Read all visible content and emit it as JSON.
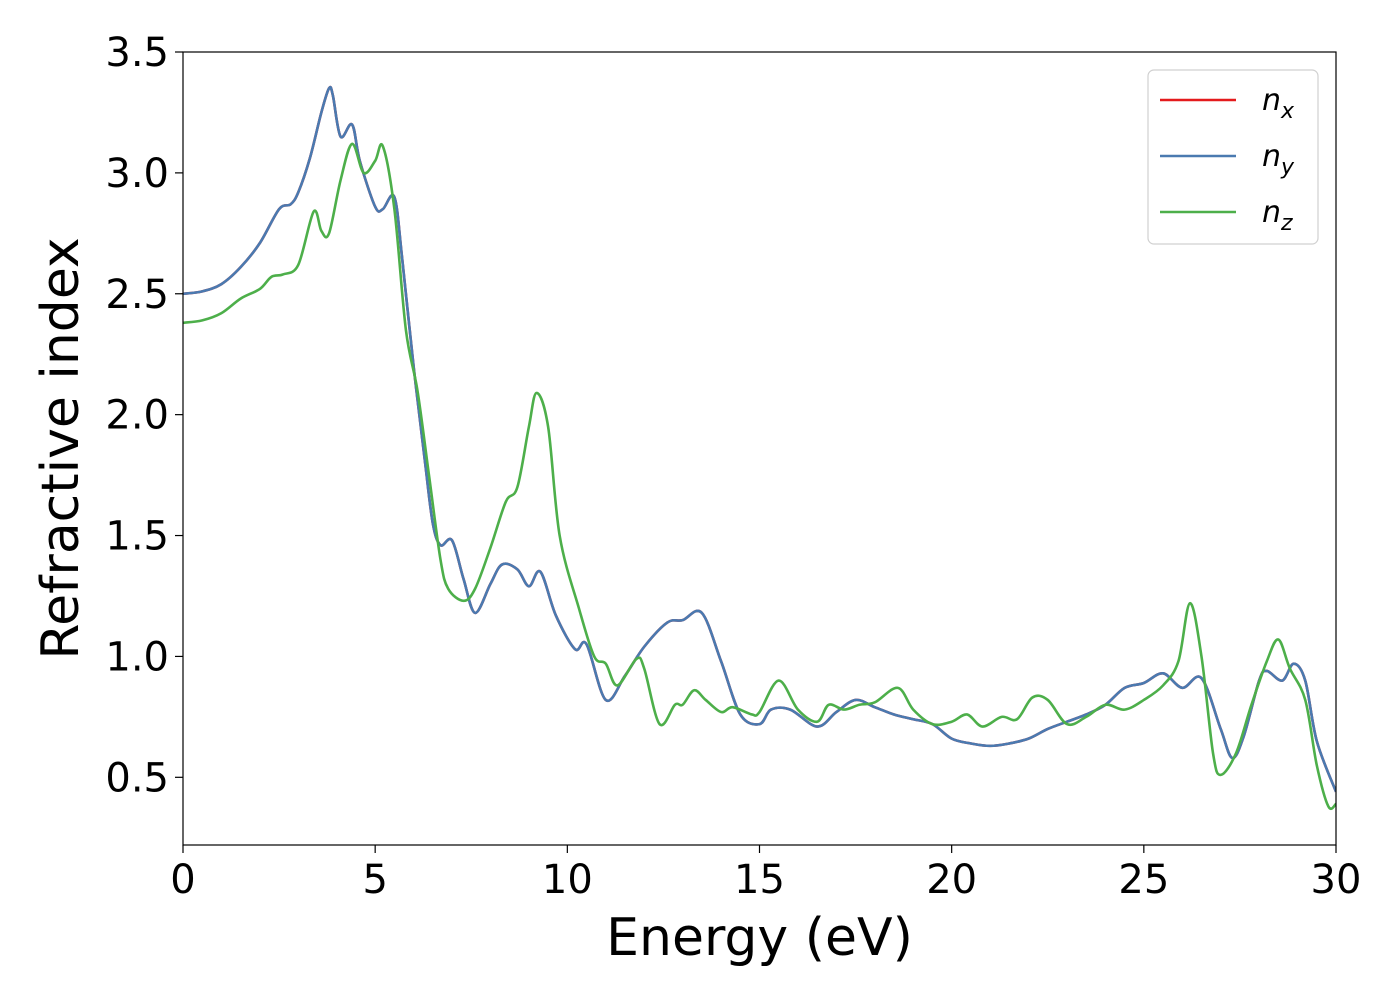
{
  "chart_data": {
    "type": "line",
    "xlabel": "Energy (eV)",
    "ylabel": "Refractive index",
    "xlim": [
      0,
      30
    ],
    "ylim": [
      0.22,
      3.5
    ],
    "xticks": [
      "0",
      "5",
      "10",
      "15",
      "20",
      "25",
      "30"
    ],
    "yticks": [
      "0.5",
      "1.0",
      "1.5",
      "2.0",
      "2.5",
      "3.0",
      "3.5"
    ],
    "grid": false,
    "legend_position": "top-right",
    "series": [
      {
        "name": "n_x",
        "legend_base": "n",
        "legend_sub": "x",
        "color": "#e41a1c",
        "points": [
          [
            0,
            2.5
          ],
          [
            0.5,
            2.51
          ],
          [
            1.0,
            2.54
          ],
          [
            1.5,
            2.61
          ],
          [
            2.0,
            2.71
          ],
          [
            2.5,
            2.85
          ],
          [
            2.8,
            2.87
          ],
          [
            3.0,
            2.92
          ],
          [
            3.3,
            3.06
          ],
          [
            3.6,
            3.25
          ],
          [
            3.8,
            3.35
          ],
          [
            3.9,
            3.32
          ],
          [
            4.1,
            3.15
          ],
          [
            4.4,
            3.2
          ],
          [
            4.6,
            3.05
          ],
          [
            5.0,
            2.86
          ],
          [
            5.2,
            2.85
          ],
          [
            5.5,
            2.9
          ],
          [
            5.7,
            2.65
          ],
          [
            6.0,
            2.2
          ],
          [
            6.3,
            1.8
          ],
          [
            6.5,
            1.55
          ],
          [
            6.7,
            1.46
          ],
          [
            7.0,
            1.48
          ],
          [
            7.3,
            1.32
          ],
          [
            7.6,
            1.18
          ],
          [
            8.0,
            1.3
          ],
          [
            8.3,
            1.38
          ],
          [
            8.7,
            1.36
          ],
          [
            9.0,
            1.29
          ],
          [
            9.3,
            1.35
          ],
          [
            9.7,
            1.17
          ],
          [
            10.2,
            1.03
          ],
          [
            10.5,
            1.05
          ],
          [
            11.0,
            0.82
          ],
          [
            11.5,
            0.92
          ],
          [
            12.0,
            1.04
          ],
          [
            12.6,
            1.14
          ],
          [
            13.0,
            1.15
          ],
          [
            13.5,
            1.18
          ],
          [
            14.0,
            0.98
          ],
          [
            14.5,
            0.76
          ],
          [
            15.0,
            0.72
          ],
          [
            15.3,
            0.78
          ],
          [
            15.8,
            0.78
          ],
          [
            16.5,
            0.71
          ],
          [
            17.0,
            0.77
          ],
          [
            17.5,
            0.82
          ],
          [
            18.0,
            0.79
          ],
          [
            18.5,
            0.76
          ],
          [
            19.0,
            0.74
          ],
          [
            19.5,
            0.72
          ],
          [
            20.0,
            0.66
          ],
          [
            20.5,
            0.64
          ],
          [
            21.0,
            0.63
          ],
          [
            21.5,
            0.64
          ],
          [
            22.0,
            0.66
          ],
          [
            22.5,
            0.7
          ],
          [
            23.0,
            0.73
          ],
          [
            23.5,
            0.76
          ],
          [
            24.0,
            0.8
          ],
          [
            24.5,
            0.87
          ],
          [
            25.0,
            0.89
          ],
          [
            25.5,
            0.93
          ],
          [
            26.0,
            0.87
          ],
          [
            26.5,
            0.91
          ],
          [
            27.0,
            0.7
          ],
          [
            27.3,
            0.58
          ],
          [
            27.6,
            0.67
          ],
          [
            28.0,
            0.9
          ],
          [
            28.2,
            0.94
          ],
          [
            28.6,
            0.9
          ],
          [
            28.9,
            0.97
          ],
          [
            29.2,
            0.9
          ],
          [
            29.5,
            0.65
          ],
          [
            30.0,
            0.44
          ]
        ]
      },
      {
        "name": "n_y",
        "legend_base": "n",
        "legend_sub": "y",
        "color": "#4a7ab0",
        "points": [
          [
            0,
            2.5
          ],
          [
            0.5,
            2.51
          ],
          [
            1.0,
            2.54
          ],
          [
            1.5,
            2.61
          ],
          [
            2.0,
            2.71
          ],
          [
            2.5,
            2.85
          ],
          [
            2.8,
            2.87
          ],
          [
            3.0,
            2.92
          ],
          [
            3.3,
            3.06
          ],
          [
            3.6,
            3.25
          ],
          [
            3.8,
            3.35
          ],
          [
            3.9,
            3.32
          ],
          [
            4.1,
            3.15
          ],
          [
            4.4,
            3.2
          ],
          [
            4.6,
            3.05
          ],
          [
            5.0,
            2.86
          ],
          [
            5.2,
            2.85
          ],
          [
            5.5,
            2.9
          ],
          [
            5.7,
            2.65
          ],
          [
            6.0,
            2.2
          ],
          [
            6.3,
            1.8
          ],
          [
            6.5,
            1.55
          ],
          [
            6.7,
            1.46
          ],
          [
            7.0,
            1.48
          ],
          [
            7.3,
            1.32
          ],
          [
            7.6,
            1.18
          ],
          [
            8.0,
            1.3
          ],
          [
            8.3,
            1.38
          ],
          [
            8.7,
            1.36
          ],
          [
            9.0,
            1.29
          ],
          [
            9.3,
            1.35
          ],
          [
            9.7,
            1.17
          ],
          [
            10.2,
            1.03
          ],
          [
            10.5,
            1.05
          ],
          [
            11.0,
            0.82
          ],
          [
            11.5,
            0.92
          ],
          [
            12.0,
            1.04
          ],
          [
            12.6,
            1.14
          ],
          [
            13.0,
            1.15
          ],
          [
            13.5,
            1.18
          ],
          [
            14.0,
            0.98
          ],
          [
            14.5,
            0.76
          ],
          [
            15.0,
            0.72
          ],
          [
            15.3,
            0.78
          ],
          [
            15.8,
            0.78
          ],
          [
            16.5,
            0.71
          ],
          [
            17.0,
            0.77
          ],
          [
            17.5,
            0.82
          ],
          [
            18.0,
            0.79
          ],
          [
            18.5,
            0.76
          ],
          [
            19.0,
            0.74
          ],
          [
            19.5,
            0.72
          ],
          [
            20.0,
            0.66
          ],
          [
            20.5,
            0.64
          ],
          [
            21.0,
            0.63
          ],
          [
            21.5,
            0.64
          ],
          [
            22.0,
            0.66
          ],
          [
            22.5,
            0.7
          ],
          [
            23.0,
            0.73
          ],
          [
            23.5,
            0.76
          ],
          [
            24.0,
            0.8
          ],
          [
            24.5,
            0.87
          ],
          [
            25.0,
            0.89
          ],
          [
            25.5,
            0.93
          ],
          [
            26.0,
            0.87
          ],
          [
            26.5,
            0.91
          ],
          [
            27.0,
            0.7
          ],
          [
            27.3,
            0.58
          ],
          [
            27.6,
            0.67
          ],
          [
            28.0,
            0.9
          ],
          [
            28.2,
            0.94
          ],
          [
            28.6,
            0.9
          ],
          [
            28.9,
            0.97
          ],
          [
            29.2,
            0.9
          ],
          [
            29.5,
            0.65
          ],
          [
            30.0,
            0.44
          ]
        ]
      },
      {
        "name": "n_z",
        "legend_base": "n",
        "legend_sub": "z",
        "color": "#4daf4a",
        "points": [
          [
            0,
            2.38
          ],
          [
            0.5,
            2.39
          ],
          [
            1.0,
            2.42
          ],
          [
            1.5,
            2.48
          ],
          [
            2.0,
            2.52
          ],
          [
            2.3,
            2.57
          ],
          [
            2.6,
            2.58
          ],
          [
            3.0,
            2.62
          ],
          [
            3.4,
            2.84
          ],
          [
            3.6,
            2.76
          ],
          [
            3.8,
            2.75
          ],
          [
            4.1,
            2.97
          ],
          [
            4.4,
            3.12
          ],
          [
            4.7,
            3.0
          ],
          [
            5.0,
            3.05
          ],
          [
            5.2,
            3.11
          ],
          [
            5.5,
            2.85
          ],
          [
            5.8,
            2.35
          ],
          [
            6.1,
            2.1
          ],
          [
            6.4,
            1.75
          ],
          [
            6.7,
            1.4
          ],
          [
            6.9,
            1.28
          ],
          [
            7.3,
            1.23
          ],
          [
            7.6,
            1.28
          ],
          [
            8.0,
            1.45
          ],
          [
            8.4,
            1.64
          ],
          [
            8.7,
            1.7
          ],
          [
            9.0,
            1.95
          ],
          [
            9.2,
            2.09
          ],
          [
            9.5,
            1.95
          ],
          [
            9.8,
            1.5
          ],
          [
            10.3,
            1.2
          ],
          [
            10.7,
            1.0
          ],
          [
            11.0,
            0.97
          ],
          [
            11.3,
            0.88
          ],
          [
            11.8,
            0.99
          ],
          [
            12.0,
            0.95
          ],
          [
            12.4,
            0.72
          ],
          [
            12.8,
            0.8
          ],
          [
            13.0,
            0.8
          ],
          [
            13.3,
            0.86
          ],
          [
            13.6,
            0.82
          ],
          [
            14.0,
            0.77
          ],
          [
            14.3,
            0.79
          ],
          [
            14.8,
            0.76
          ],
          [
            15.0,
            0.77
          ],
          [
            15.5,
            0.9
          ],
          [
            16.0,
            0.78
          ],
          [
            16.5,
            0.73
          ],
          [
            16.8,
            0.8
          ],
          [
            17.2,
            0.78
          ],
          [
            17.6,
            0.8
          ],
          [
            18.0,
            0.81
          ],
          [
            18.6,
            0.87
          ],
          [
            19.0,
            0.78
          ],
          [
            19.5,
            0.72
          ],
          [
            20.0,
            0.73
          ],
          [
            20.4,
            0.76
          ],
          [
            20.8,
            0.71
          ],
          [
            21.3,
            0.75
          ],
          [
            21.7,
            0.74
          ],
          [
            22.1,
            0.83
          ],
          [
            22.5,
            0.82
          ],
          [
            23.0,
            0.72
          ],
          [
            23.5,
            0.75
          ],
          [
            24.0,
            0.8
          ],
          [
            24.5,
            0.78
          ],
          [
            25.0,
            0.82
          ],
          [
            25.5,
            0.88
          ],
          [
            25.9,
            0.98
          ],
          [
            26.2,
            1.22
          ],
          [
            26.5,
            1.0
          ],
          [
            26.8,
            0.6
          ],
          [
            27.0,
            0.51
          ],
          [
            27.4,
            0.6
          ],
          [
            27.8,
            0.8
          ],
          [
            28.2,
            0.98
          ],
          [
            28.5,
            1.07
          ],
          [
            28.8,
            0.95
          ],
          [
            29.2,
            0.82
          ],
          [
            29.5,
            0.55
          ],
          [
            29.8,
            0.38
          ],
          [
            30.0,
            0.39
          ]
        ]
      }
    ]
  }
}
